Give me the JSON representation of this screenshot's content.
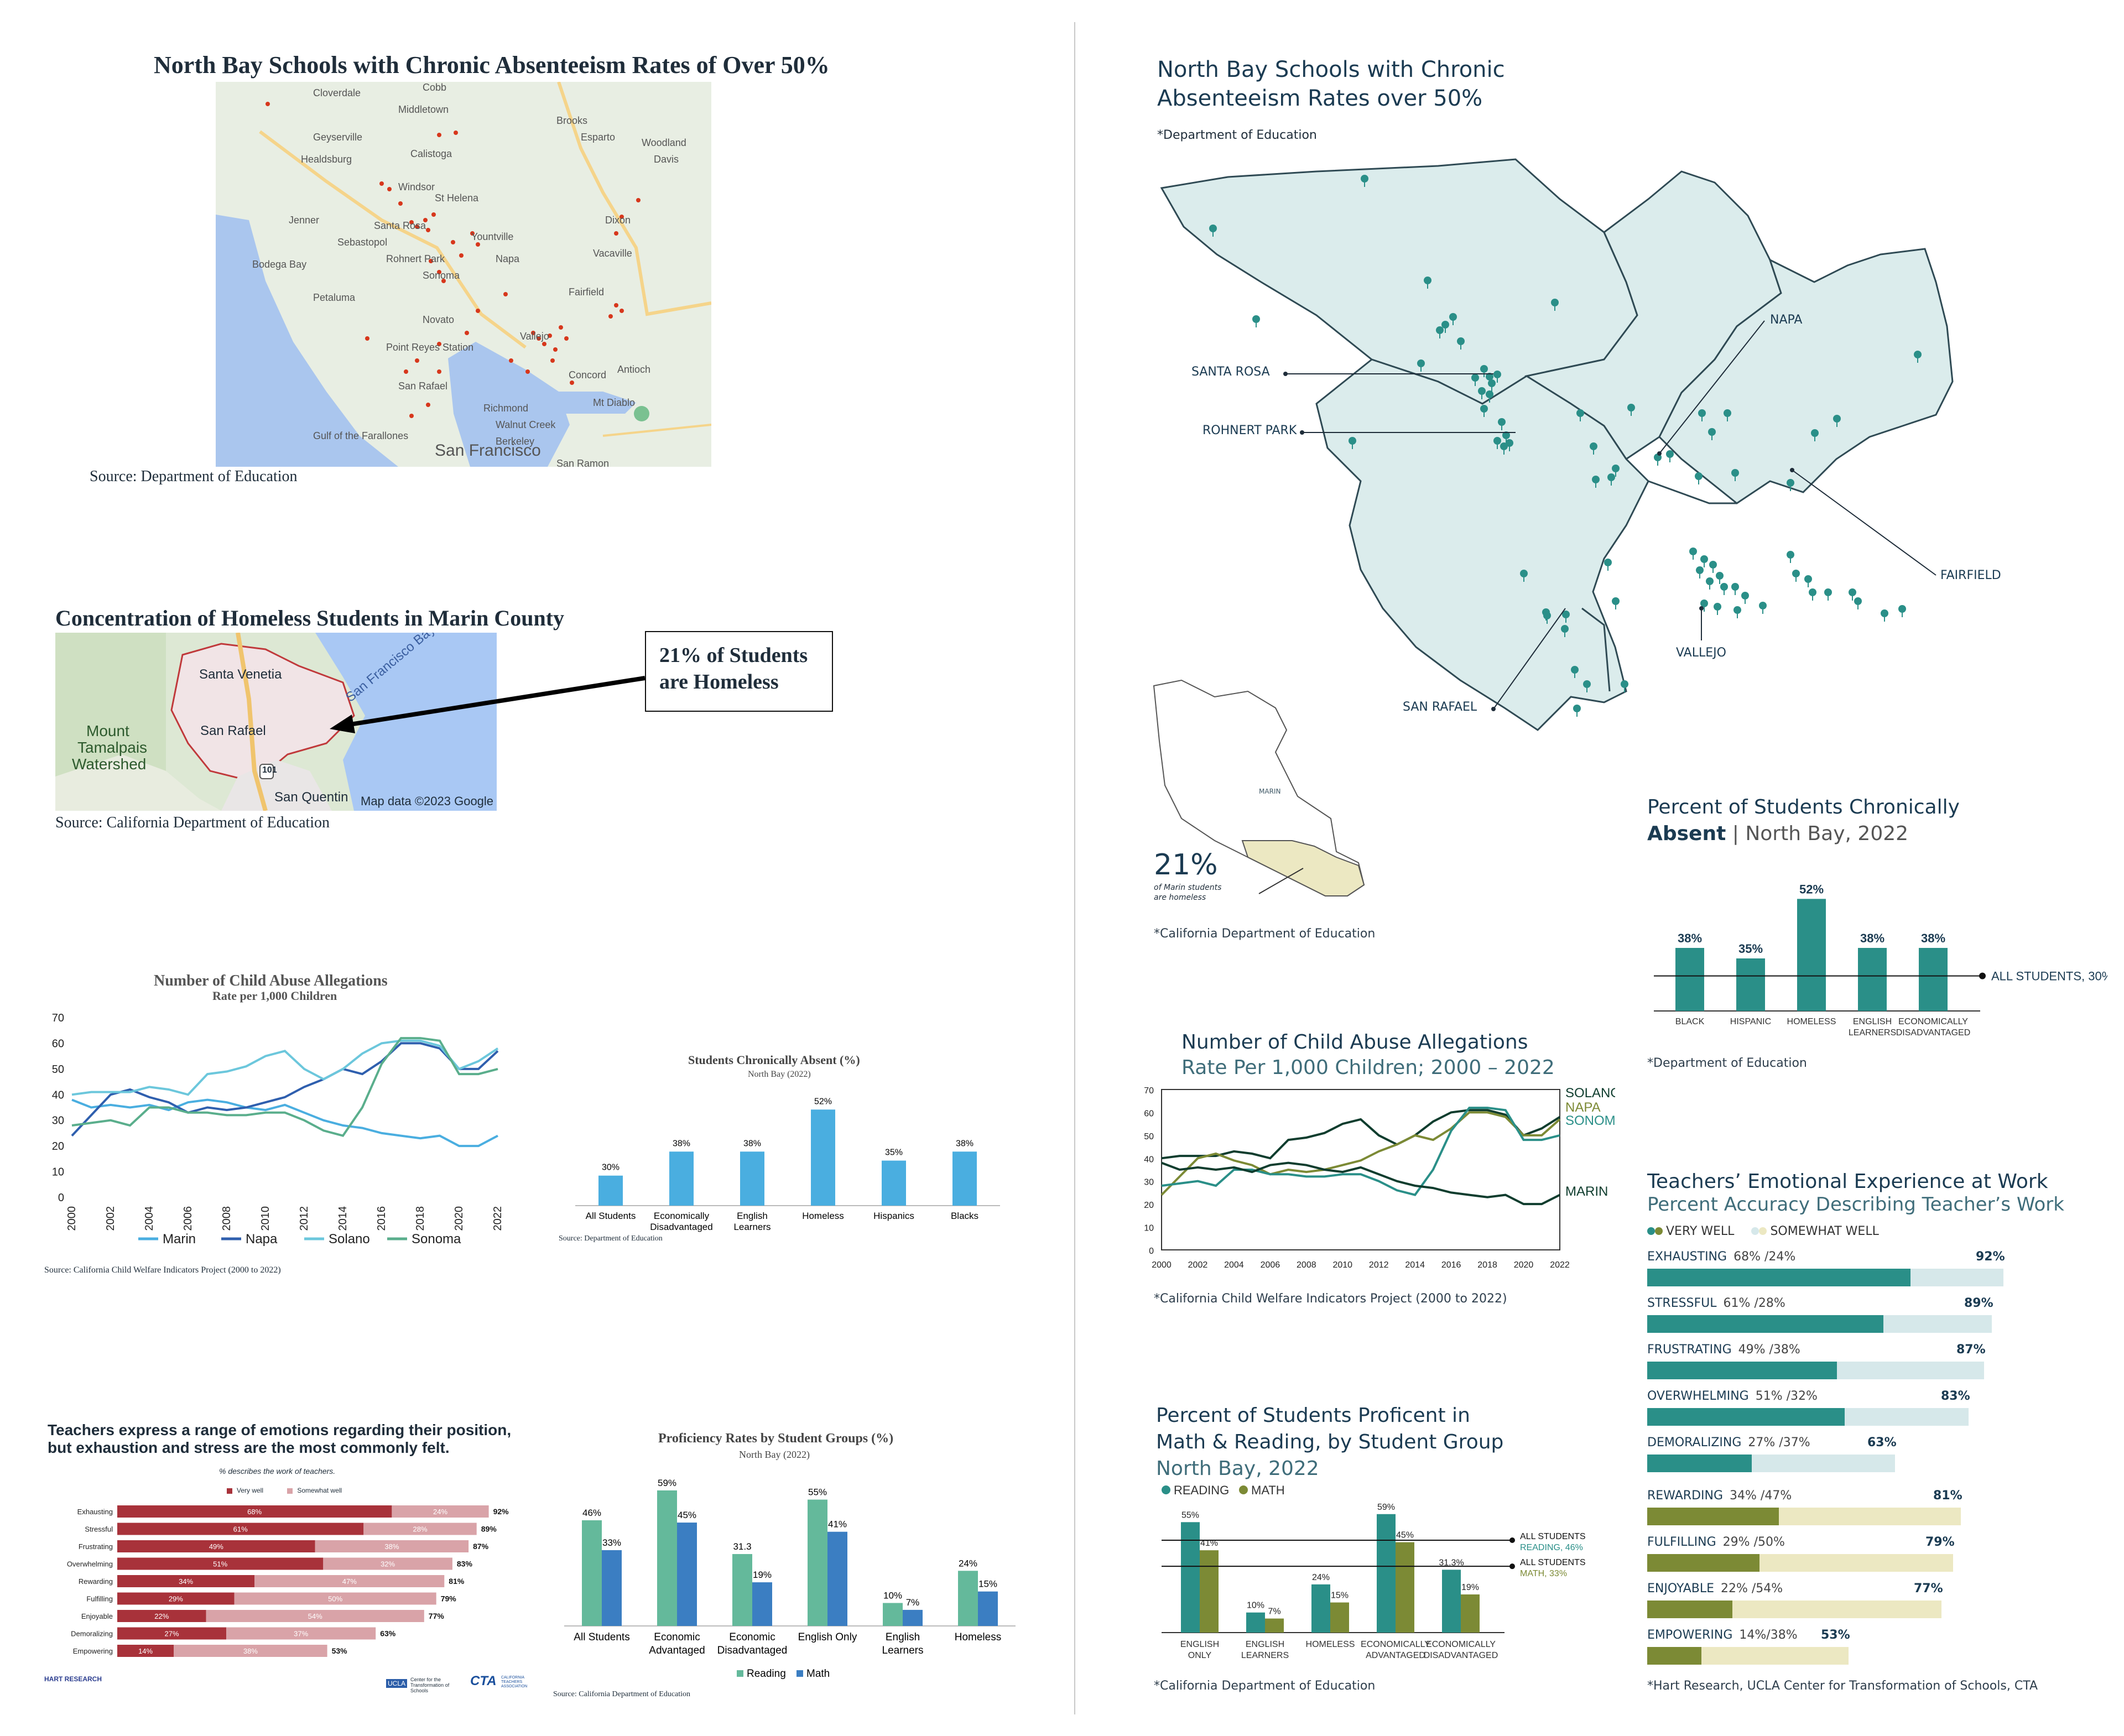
{
  "left": {
    "map1": {
      "title": "North Bay Schools with Chronic Absenteeism Rates of Over 50%",
      "source": "Source: Department of Education",
      "places": [
        "Cloverdale",
        "Cobb",
        "Middletown",
        "Brooks",
        "Esparto",
        "Woodland",
        "Geyserville",
        "Healdsburg",
        "Davis",
        "Windsor",
        "Calistoga",
        "St Helena",
        "Santa Rosa",
        "Sebastopol",
        "Yountville",
        "Dixon",
        "Jenner",
        "Rohnert Park",
        "Napa",
        "Vacaville",
        "Bodega Bay",
        "Petaluma",
        "Sonoma",
        "Fairfield",
        "Novato",
        "Point Reyes Station",
        "Vallejo",
        "Concord",
        "San Rafael",
        "Richmond",
        "Antioch",
        "Walnut Creek",
        "Berkeley",
        "Mt Diablo",
        "San Francisco",
        "San Ramon",
        "Gulf of the Farallones"
      ]
    },
    "map2": {
      "title": "Concentration of Homeless Students in Marin County",
      "callout": [
        "21% of Students",
        "are Homeless"
      ],
      "places": [
        "Santa Venetia",
        "San Rafael",
        "Mount",
        "Tamalpais",
        "Watershed",
        "San Francisco Bay",
        "101",
        "San Quentin"
      ],
      "attribution": "Map data ©2023 Google",
      "source": "Source: California Department of Education"
    },
    "abuse_chart_title": "Number of Child Abuse Allegations",
    "abuse_chart_subtitle": "Rate per 1,000 Children",
    "abuse_chart_source": "Source: California Child Welfare Indicators Project (2000 to 2022)",
    "absent_chart_title": "Students Chronically Absent (%)",
    "absent_chart_subtitle": "North Bay (2022)",
    "absent_chart_source": "Source: Department of Education",
    "teachers_title": "Teachers express a range of emotions regarding their position, but exhaustion and stress are the most commonly felt.",
    "teachers_note": "% describes the work of teachers.",
    "teachers_legend": [
      "Very well",
      "Somewhat well"
    ],
    "teachers_logos": [
      "HART RESEARCH",
      "UCLA",
      "Center for the Transformation of Schools",
      "CTA",
      "CALIFORNIA TEACHERS ASSOCIATION"
    ],
    "prof_chart_title": "Proficiency Rates by Student Groups (%)",
    "prof_chart_subtitle": "North Bay (2022)",
    "prof_chart_source": "Source: California Department of Education"
  },
  "right": {
    "map1": {
      "title_line1": "North Bay Schools with Chronic",
      "title_line2": "Absenteeism Rates over 50%",
      "source": "*Department of Education",
      "labels": [
        "NAPA",
        "SANTA ROSA",
        "ROHNERT PARK",
        "FAIRFIELD",
        "VALLEJO",
        "SAN RAFAEL"
      ]
    },
    "marin": {
      "label": "MARIN",
      "pct": "21%",
      "caption_line1": "of Marin students",
      "caption_line2": "are homeless",
      "source": "*California Department of Education"
    },
    "absent_title_line1": "Percent of Students Chronically",
    "absent_title_bold": "Absent",
    "absent_title_rest": "| North Bay, 2022",
    "absent_ref": "ALL STUDENTS, 30%",
    "absent_source": "*Department of Education",
    "abuse_title": "Number of Child Abuse Allegations",
    "abuse_subtitle": "Rate Per 1,000 Children; 2000 – 2022",
    "abuse_source": "*California Child Welfare Indicators Project (2000 to 2022)",
    "prof_title_line1": "Percent of Students Proficent in",
    "prof_title_line2": "Math & Reading, by Student Group",
    "prof_subtitle": "North Bay, 2022",
    "prof_ref_reading": [
      "ALL STUDENTS",
      "READING, 46%"
    ],
    "prof_ref_math": [
      "ALL STUDENTS",
      "MATH, 33%"
    ],
    "prof_source": "*California Department of Education",
    "teachers_title": "Teachers’ Emotional Experience at Work",
    "teachers_subtitle": "Percent Accuracy Describing Teacher’s Work",
    "teachers_legend": [
      "VERY WELL",
      "SOMEWHAT WELL"
    ],
    "teachers_source": "*Hart Research, UCLA Center for Transformation of Schools, CTA"
  },
  "colors": {
    "teal": "#2a8f88",
    "olive": "#7c8a35",
    "dark": "#0f3d2e",
    "red": "#a8323a",
    "pink": "#d9a3a8",
    "blue": "#4aaee0"
  },
  "chart_data": [
    {
      "id": "abuse_left",
      "type": "line",
      "title": "Number of Child Abuse Allegations",
      "subtitle": "Rate per 1,000 Children",
      "x": [
        2000,
        2001,
        2002,
        2003,
        2004,
        2005,
        2006,
        2007,
        2008,
        2009,
        2010,
        2011,
        2012,
        2013,
        2014,
        2015,
        2016,
        2017,
        2018,
        2019,
        2020,
        2021,
        2022
      ],
      "x_ticks": [
        "2000",
        "2002",
        "2004",
        "2006",
        "2008",
        "2010",
        "2012",
        "2014",
        "2016",
        "2018",
        "2020",
        "2022"
      ],
      "ylim": [
        0,
        70
      ],
      "y_ticks": [
        "0",
        "10",
        "20",
        "30",
        "40",
        "50",
        "60",
        "70"
      ],
      "series": [
        {
          "name": "Marin",
          "color": "#4aaee0",
          "values": [
            38,
            35,
            36,
            35,
            36,
            34,
            37,
            38,
            37,
            35,
            34,
            36,
            33,
            30,
            28,
            27,
            25,
            24,
            23,
            24,
            20,
            20,
            24
          ]
        },
        {
          "name": "Napa",
          "color": "#2f5fae",
          "values": [
            24,
            32,
            40,
            42,
            39,
            37,
            33,
            35,
            34,
            35,
            37,
            39,
            43,
            46,
            50,
            48,
            53,
            60,
            60,
            58,
            50,
            50,
            57
          ]
        },
        {
          "name": "Solano",
          "color": "#6cc7dc",
          "values": [
            40,
            41,
            41,
            41,
            43,
            42,
            40,
            48,
            49,
            51,
            55,
            57,
            50,
            46,
            50,
            56,
            60,
            61,
            61,
            59,
            50,
            53,
            58
          ]
        },
        {
          "name": "Sonoma",
          "color": "#5aae8c",
          "values": [
            28,
            29,
            30,
            28,
            35,
            35,
            33,
            33,
            32,
            32,
            33,
            33,
            30,
            26,
            24,
            35,
            52,
            62,
            62,
            61,
            48,
            48,
            50
          ]
        }
      ],
      "legend": "bottom",
      "source": "Source: California Child Welfare Indicators Project (2000 to 2022)"
    },
    {
      "id": "absent_left",
      "type": "bar",
      "title": "Students Chronically Absent (%)",
      "subtitle": "North Bay (2022)",
      "categories": [
        "All Students",
        "Economically Disadvantaged",
        "English Learners",
        "Homeless",
        "Hispanics",
        "Blacks"
      ],
      "values": [
        30,
        38,
        38,
        52,
        35,
        38
      ],
      "labels": [
        "30%",
        "38%",
        "38%",
        "52%",
        "35%",
        "38%"
      ],
      "ylim": [
        20,
        55
      ]
    },
    {
      "id": "teachers_left",
      "type": "bar",
      "orientation": "horizontal-stacked",
      "categories": [
        "Exhausting",
        "Stressful",
        "Frustrating",
        "Overwhelming",
        "Rewarding",
        "Fulfilling",
        "Enjoyable",
        "Demoralizing",
        "Empowering"
      ],
      "series": [
        {
          "name": "Very well",
          "values": [
            68,
            61,
            49,
            51,
            34,
            29,
            22,
            27,
            14
          ]
        },
        {
          "name": "Somewhat well",
          "values": [
            24,
            28,
            38,
            32,
            47,
            50,
            54,
            37,
            38
          ]
        }
      ],
      "totals": [
        92,
        89,
        87,
        83,
        81,
        79,
        77,
        63,
        53
      ]
    },
    {
      "id": "prof_left",
      "type": "bar",
      "title": "Proficiency Rates by Student Groups (%)",
      "subtitle": "North Bay (2022)",
      "categories": [
        "All Students",
        "Economic Advantaged",
        "Economic Disadvantaged",
        "English Only",
        "English Learners",
        "Homeless"
      ],
      "series": [
        {
          "name": "Reading",
          "color": "#64b99b",
          "values": [
            46,
            59,
            31.3,
            55,
            10,
            24
          ],
          "labels": [
            "46%",
            "59%",
            "31.3",
            "55%",
            "10%",
            "24%"
          ]
        },
        {
          "name": "Math",
          "color": "#3b7ec2",
          "values": [
            33,
            45,
            19,
            41,
            7,
            15
          ],
          "labels": [
            "33%",
            "45%",
            "19%",
            "41%",
            "7%",
            "15%"
          ]
        }
      ],
      "ylim": [
        0,
        65
      ]
    },
    {
      "id": "absent_right",
      "type": "bar",
      "title": "Percent of Students Chronically Absent | North Bay, 2022",
      "categories": [
        "BLACK",
        "HISPANIC",
        "HOMELESS",
        "ENGLISH LEARNERS",
        "ECONOMICALLY DISADVANTAGED"
      ],
      "values": [
        38,
        35,
        52,
        38,
        38
      ],
      "labels": [
        "38%",
        "35%",
        "52%",
        "38%",
        "38%"
      ],
      "reference": {
        "label": "ALL STUDENTS, 30%",
        "value": 30
      },
      "ylim": [
        20,
        56
      ]
    },
    {
      "id": "abuse_right",
      "type": "line",
      "title": "Number of Child Abuse Allegations",
      "subtitle": "Rate Per 1,000 Children; 2000 – 2022",
      "x": [
        2000,
        2001,
        2002,
        2003,
        2004,
        2005,
        2006,
        2007,
        2008,
        2009,
        2010,
        2011,
        2012,
        2013,
        2014,
        2015,
        2016,
        2017,
        2018,
        2019,
        2020,
        2021,
        2022
      ],
      "x_ticks": [
        "2000",
        "2002",
        "2004",
        "2006",
        "2008",
        "2010",
        "2012",
        "2014",
        "2016",
        "2018",
        "2020",
        "2022"
      ],
      "ylim": [
        0,
        70
      ],
      "y_ticks": [
        "0",
        "10",
        "20",
        "30",
        "40",
        "50",
        "60",
        "70"
      ],
      "series": [
        {
          "name": "SOLANO",
          "color": "#0f3d2e",
          "values": [
            40,
            41,
            41,
            41,
            43,
            42,
            40,
            48,
            49,
            51,
            55,
            57,
            50,
            46,
            50,
            56,
            60,
            61,
            61,
            59,
            50,
            53,
            58
          ]
        },
        {
          "name": "NAPA",
          "color": "#7c8a35",
          "values": [
            24,
            32,
            40,
            42,
            39,
            37,
            33,
            35,
            34,
            35,
            37,
            39,
            43,
            46,
            50,
            48,
            53,
            60,
            60,
            58,
            50,
            50,
            57
          ]
        },
        {
          "name": "SONOMA",
          "color": "#2a8f88",
          "values": [
            28,
            29,
            30,
            28,
            35,
            35,
            33,
            33,
            32,
            32,
            33,
            33,
            30,
            26,
            24,
            35,
            52,
            62,
            62,
            61,
            48,
            48,
            50
          ]
        },
        {
          "name": "MARIN",
          "color": "#0f3d2e",
          "values": [
            38,
            35,
            36,
            35,
            36,
            34,
            37,
            38,
            37,
            35,
            34,
            36,
            33,
            30,
            28,
            27,
            25,
            24,
            23,
            24,
            20,
            20,
            24
          ]
        }
      ],
      "source": "*California Child Welfare Indicators Project (2000 to 2022)"
    },
    {
      "id": "prof_right",
      "type": "bar",
      "title": "Percent of Students Proficent in Math & Reading, by Student Group",
      "subtitle": "North Bay, 2022",
      "categories": [
        "ENGLISH ONLY",
        "ENGLISH LEARNERS",
        "HOMELESS",
        "ECONOMICALLY ADVANTAGED",
        "ECONOMICALLY DISADVANTAGED"
      ],
      "series": [
        {
          "name": "READING",
          "color": "#2a8f88",
          "values": [
            55,
            10,
            24,
            59,
            31.3
          ],
          "labels": [
            "55%",
            "10%",
            "24%",
            "59%",
            "31.3%"
          ]
        },
        {
          "name": "MATH",
          "color": "#7c8a35",
          "values": [
            41,
            7,
            15,
            45,
            19
          ],
          "labels": [
            "41%",
            "7%",
            "15%",
            "45%",
            "19%"
          ]
        }
      ],
      "reference": [
        {
          "label": "ALL STUDENTS READING, 46%",
          "value": 46
        },
        {
          "label": "ALL STUDENTS MATH, 33%",
          "value": 33
        }
      ],
      "ylim": [
        0,
        65
      ]
    },
    {
      "id": "teachers_right",
      "type": "bar",
      "orientation": "horizontal-stacked",
      "title": "Teachers’ Emotional Experience at Work",
      "categories": [
        "EXHAUSTING",
        "STRESSFUL",
        "FRUSTRATING",
        "OVERWHELMING",
        "DEMORALIZING",
        "REWARDING",
        "FULFILLING",
        "ENJOYABLE",
        "EMPOWERING"
      ],
      "series": [
        {
          "name": "VERY WELL",
          "values": [
            68,
            61,
            49,
            51,
            27,
            34,
            29,
            22,
            14
          ]
        },
        {
          "name": "SOMEWHAT WELL",
          "values": [
            24,
            28,
            38,
            32,
            37,
            47,
            50,
            54,
            38
          ]
        }
      ],
      "labels": [
        "68% /24%",
        "61% /28%",
        "49% /38%",
        "51% /32%",
        "27% /37%",
        "34% /47%",
        "29% /50%",
        "22% /54%",
        "14%/38%"
      ],
      "totals": [
        "92%",
        "89%",
        "87%",
        "83%",
        "63%",
        "81%",
        "79%",
        "77%",
        "53%"
      ]
    }
  ]
}
